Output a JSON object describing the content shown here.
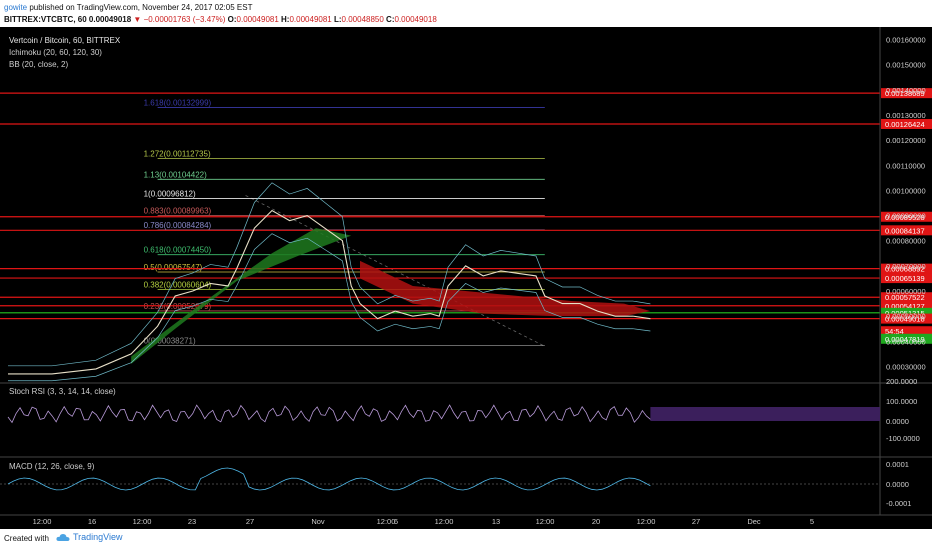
{
  "header": {
    "user": "gowite",
    "published": "published on TradingView.com, November 24, 2017 02:05 EST",
    "symbol": "BITTREX:VTCBTC, 60",
    "price": "0.00049018",
    "change": "−0.00001763 (−3.47%)",
    "o_label": "O:",
    "o": "0.00049081",
    "h_label": "H:",
    "h": "0.00049081",
    "l_label": "L:",
    "l": "0.00048850",
    "c_label": "C:",
    "c": "0.00049018"
  },
  "legend": {
    "title": "Vertcoin / Bitcoin, 60, BITTREX",
    "ichimoku": "Ichimoku (20, 60, 120, 30)",
    "bb": "BB (20, close, 2)"
  },
  "footer": {
    "created": "Created with",
    "brand": "TradingView"
  },
  "colors": {
    "background": "#000000",
    "red_level": "#e01515",
    "green_level": "#22c422",
    "cloud_green": "#1f7a1f",
    "cloud_red": "#b01010",
    "rsi_fill": "#3b1f5c"
  },
  "chart_data": [
    {
      "type": "line",
      "name": "price",
      "y_axis": {
        "min": 0.00025,
        "max": 0.00165,
        "ticks": [
          "0.00160000",
          "0.00150000",
          "0.00140000",
          "0.00130000",
          "0.00120000",
          "0.00110000",
          "0.00100000",
          "0.00090000",
          "0.00080000",
          "0.00070000",
          "0.00060000",
          "0.00050000",
          "0.00040000",
          "0.00030000"
        ]
      },
      "x_ticks": [
        "12:00",
        "16",
        "12:00",
        "23",
        "27",
        "Nov",
        "12:00",
        "6",
        "12:00",
        "13",
        "12:00",
        "20",
        "12:00",
        "27",
        "Dec",
        "5"
      ],
      "fib_levels": [
        {
          "label": "1.618(0.00132999)",
          "value": 0.00132999,
          "color": "#3a3aa8"
        },
        {
          "label": "1.272(0.00112735)",
          "value": 0.00112735,
          "color": "#b5c84a"
        },
        {
          "label": "1.13(0.00104422)",
          "value": 0.00104422,
          "color": "#6fcf8f"
        },
        {
          "label": "1(0.00096812)",
          "value": 0.00096812,
          "color": "#e8e8e8"
        },
        {
          "label": "0.883(0.00089963)",
          "value": 0.00089963,
          "color": "#c85a5a"
        },
        {
          "label": "0.786(0.00084284)",
          "value": 0.00084284,
          "color": "#8a8aca"
        },
        {
          "label": "0.618(0.00074450)",
          "value": 0.0007445,
          "color": "#3fbf6f"
        },
        {
          "label": "0.5(0.00067547)",
          "value": 0.00067547,
          "color": "#d0c040"
        },
        {
          "label": "0.382(0.00060604)",
          "value": 0.00060604,
          "color": "#b5d040"
        },
        {
          "label": "0.236(0.00052079)",
          "value": 0.00052079,
          "color": "#c05050"
        },
        {
          "label": "0(0.00038271)",
          "value": 0.00038271,
          "color": "#8a8a8a"
        }
      ],
      "price_labels": [
        {
          "label": "0.00138689",
          "value": 0.00138689,
          "color": "#e01515"
        },
        {
          "label": "0.00126424",
          "value": 0.00126424,
          "color": "#e01515"
        },
        {
          "label": "0.00089528",
          "value": 0.00089528,
          "color": "#e01515"
        },
        {
          "label": "0.00084137",
          "value": 0.00084137,
          "color": "#e01515"
        },
        {
          "label": "0.00068892",
          "value": 0.00068892,
          "color": "#e01515"
        },
        {
          "label": "0.00065139",
          "value": 0.00065139,
          "color": "#e01515"
        },
        {
          "label": "0.00057522",
          "value": 0.00057522,
          "color": "#e01515"
        },
        {
          "label": "0.00054127",
          "value": 0.00054127,
          "color": "#e01515"
        },
        {
          "label": "0.00051315",
          "value": 0.00051315,
          "color": "#1fa81f"
        },
        {
          "label": "0.00049018",
          "value": 0.00049018,
          "color": "#e01515"
        },
        {
          "label": "54:54",
          "value": 0.00044,
          "color": "#e01515"
        },
        {
          "label": "0.00047819",
          "value": 0.00041,
          "color": "#1fa81f"
        }
      ],
      "price_series": [
        [
          0,
          0.00027
        ],
        [
          0.05,
          0.00027
        ],
        [
          0.1,
          0.00029
        ],
        [
          0.14,
          0.00035
        ],
        [
          0.17,
          0.00046
        ],
        [
          0.19,
          0.00058
        ],
        [
          0.21,
          0.0006
        ],
        [
          0.23,
          0.00063
        ],
        [
          0.25,
          0.00062
        ],
        [
          0.26,
          0.00069
        ],
        [
          0.28,
          0.00085
        ],
        [
          0.3,
          0.00092
        ],
        [
          0.32,
          0.00088
        ],
        [
          0.34,
          0.0009
        ],
        [
          0.36,
          0.00085
        ],
        [
          0.38,
          0.0008
        ],
        [
          0.39,
          0.00062
        ],
        [
          0.4,
          0.00055
        ],
        [
          0.42,
          0.00049
        ],
        [
          0.44,
          0.00052
        ],
        [
          0.46,
          0.0005
        ],
        [
          0.48,
          0.00051
        ],
        [
          0.49,
          0.0005
        ],
        [
          0.5,
          0.00062
        ],
        [
          0.52,
          0.0007
        ],
        [
          0.54,
          0.00066
        ],
        [
          0.56,
          0.00068
        ],
        [
          0.58,
          0.00067
        ],
        [
          0.6,
          0.00066
        ],
        [
          0.61,
          0.00058
        ],
        [
          0.63,
          0.00055
        ],
        [
          0.65,
          0.00055
        ],
        [
          0.67,
          0.00052
        ],
        [
          0.69,
          0.0005
        ],
        [
          0.71,
          0.0005
        ],
        [
          0.73,
          0.00049
        ]
      ]
    },
    {
      "type": "line",
      "name": "stoch-rsi",
      "title": "Stoch RSI (3, 3, 14, 14, close)",
      "y_ticks": [
        "200.0000",
        "100.0000",
        "0.0000",
        "-100.0000"
      ]
    },
    {
      "type": "line",
      "name": "macd",
      "title": "MACD (12, 26, close, 9)",
      "y_ticks": [
        "0.0001",
        "0.0000",
        "-0.0001"
      ]
    }
  ]
}
